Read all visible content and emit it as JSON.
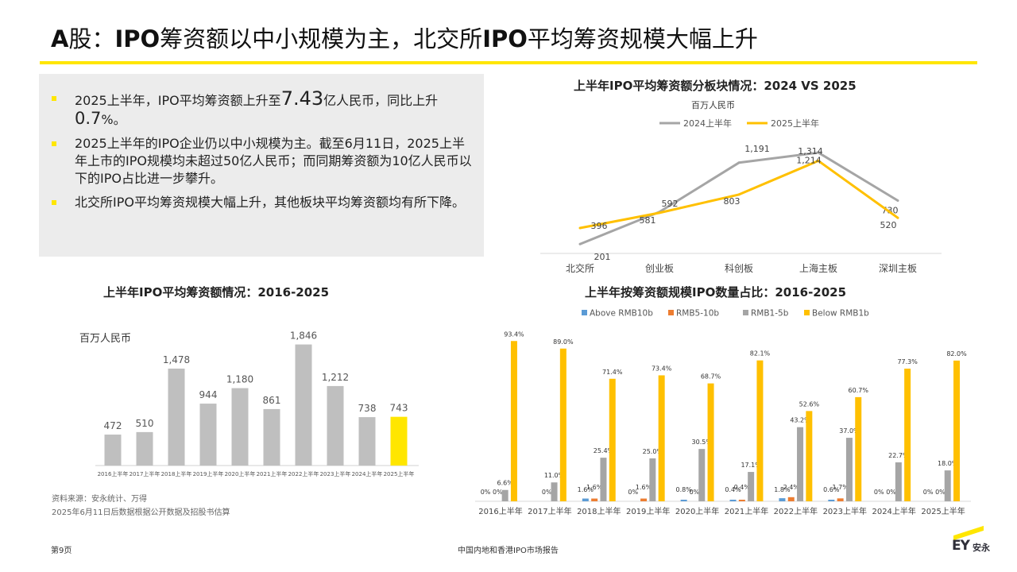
{
  "page": {
    "title_a": "A",
    "title_b": "股：",
    "title_c": "IPO",
    "title_d": "筹资额以中小规模为主，北交所",
    "title_e": "IPO",
    "title_f": "平均筹资规模大幅上升"
  },
  "summary": {
    "b1_a": "2025上半年，IPO平均筹资额上升至",
    "b1_big": "7.43",
    "b1_b": "亿人民币，同比上升",
    "b1_pct": "0.7",
    "b1_c": "%。",
    "b2": "2025上半年的IPO企业仍以中小规模为主。截至6月11日，2025上半年上市的IPO规模均未超过50亿人民币；而同期筹资额为10亿人民币以下的IPO占比进一步攀升。",
    "b3": "北交所IPO平均筹资规模大幅上升，其他板块平均筹资额均有所下降。"
  },
  "colors": {
    "accent": "#ffe600",
    "gray": "#a5a5a5",
    "orange": "#ffc000",
    "blue": "#5b9bd5",
    "red_orange": "#ed7d31",
    "dark": "#2e2e38"
  },
  "chart_data": [
    {
      "type": "line",
      "title": "上半年IPO平均筹资额分板块情况：2024 VS 2025",
      "unit": "百万人民币",
      "legend_position": "top",
      "categories": [
        "北交所",
        "创业板",
        "科创板",
        "上海主板",
        "深圳主板"
      ],
      "series": [
        {
          "name": "2024上半年",
          "color": "#a5a5a5",
          "values": [
            201,
            592,
            1191,
            1314,
            730
          ],
          "labels": [
            "201",
            "592",
            "1,191",
            "1,314",
            "730"
          ]
        },
        {
          "name": "2025上半年",
          "color": "#ffc000",
          "values": [
            396,
            581,
            803,
            1214,
            520
          ],
          "labels": [
            "396",
            "581",
            "803",
            "1,214",
            "520"
          ]
        }
      ],
      "ylim": [
        0,
        1450
      ],
      "grid": false
    },
    {
      "type": "bar",
      "title": "上半年IPO平均筹资额情况：2016-2025",
      "unit": "百万人民币",
      "categories": [
        "2016上半年",
        "2017上半年",
        "2018上半年",
        "2019上半年",
        "2020上半年",
        "2021上半年",
        "2022上半年",
        "2023上半年",
        "2024上半年",
        "2025上半年"
      ],
      "values": [
        472,
        510,
        1478,
        944,
        1180,
        861,
        1846,
        1212,
        738,
        743
      ],
      "labels": [
        "472",
        "510",
        "1,478",
        "944",
        "1,180",
        "861",
        "1,846",
        "1,212",
        "738",
        "743"
      ],
      "highlight_index": 9,
      "ylim": [
        0,
        1950
      ],
      "grid": false
    },
    {
      "type": "bar",
      "title": "上半年按筹资额规模IPO数量占比：2016-2025",
      "legend_position": "top",
      "categories": [
        "2016上半年",
        "2017上半年",
        "2018上半年",
        "2019上半年",
        "2020上半年",
        "2021上半年",
        "2022上半年",
        "2023上半年",
        "2024上半年",
        "2025上半年"
      ],
      "series": [
        {
          "name": "Above RMB10b",
          "color": "#5b9bd5",
          "values": [
            0,
            0,
            1.6,
            0,
            0.8,
            0.4,
            1.8,
            0.6,
            0,
            0
          ],
          "labels": [
            "0%",
            "",
            "1.6%",
            "0%",
            "0.8%",
            "0.4%",
            "1.8%",
            "0.6%",
            "0%",
            "0%"
          ]
        },
        {
          "name": "RMB5-10b",
          "color": "#ed7d31",
          "values": [
            0,
            0,
            1.6,
            1.6,
            0,
            0.4,
            2.4,
            1.7,
            0,
            0
          ],
          "labels": [
            "0%",
            "0%",
            "1.6%",
            "1.6%",
            "0%",
            "0.4%",
            "2.4%",
            "1.7%",
            "0%",
            "0%"
          ]
        },
        {
          "name": "RMB1-5b",
          "color": "#a5a5a5",
          "values": [
            6.6,
            11.0,
            25.4,
            25.0,
            30.5,
            17.1,
            43.2,
            37.0,
            22.7,
            18.0
          ],
          "labels": [
            "6.6%",
            "11.0%",
            "25.4%",
            "25.0%",
            "30.5%",
            "17.1%",
            "43.2%",
            "37.0%",
            "22.7%",
            "18.0%"
          ]
        },
        {
          "name": "Below RMB1b",
          "color": "#ffc000",
          "values": [
            93.4,
            89.0,
            71.4,
            73.4,
            68.7,
            82.1,
            52.6,
            60.7,
            77.3,
            82.0
          ],
          "labels": [
            "93.4%",
            "89.0%",
            "71.4%",
            "73.4%",
            "68.7%",
            "82.1%",
            "52.6%",
            "60.7%",
            "77.3%",
            "82.0%"
          ]
        }
      ],
      "ylim": [
        0,
        100
      ],
      "grid": false
    }
  ],
  "source": {
    "line1": "资料来源：安永统计、万得",
    "line2": "2025年6月11日后数据根据公开数据及招股书估算"
  },
  "footer": {
    "page": "第9页",
    "report": "中国内地和香港IPO市场报告",
    "logo_ey": "EY",
    "logo_cn": "安永"
  }
}
